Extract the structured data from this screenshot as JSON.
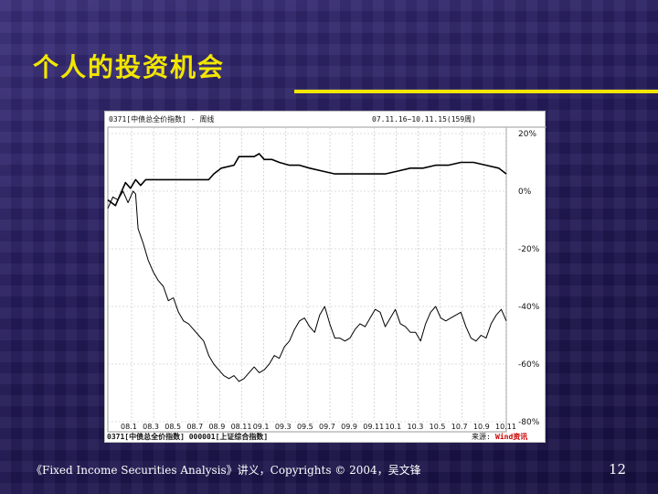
{
  "slide": {
    "title": "个人的投资机会",
    "footer": "《Fixed Income Securities Analysis》讲义，Copyrights © 2004，吴文锋",
    "page_number": "12"
  },
  "colors": {
    "title": "#f2e600",
    "background": "#201a4e",
    "pos_label": "#cc0000"
  },
  "chart_data": {
    "type": "line",
    "header_left": "0371[中债总全价指数] - 周线",
    "header_right": "07.11.16~10.11.15(159周)",
    "legend": "0371[中债总全价指数] 000001[上证综合指数]",
    "source_label": "来源:",
    "source_brand": "Wind资讯",
    "y_ticks": [
      "20%",
      "0%",
      "-20%",
      "-40%",
      "-60%",
      "-80%"
    ],
    "y_tick_values": [
      20,
      0,
      -20,
      -40,
      -60,
      -80
    ],
    "ylim": [
      -80,
      20
    ],
    "xlim": [
      0,
      158
    ],
    "x_ticks": [
      "08.1",
      "08.3",
      "08.5",
      "08.7",
      "08.9",
      "08.11",
      "09.1",
      "09.3",
      "09.5",
      "09.7",
      "09.9",
      "09.11",
      "10.1",
      "10.3",
      "10.5",
      "10.7",
      "10.9",
      "10.11"
    ],
    "grid": true,
    "series": [
      {
        "name": "0371[中债总全价指数]",
        "x": [
          0,
          3,
          5,
          7,
          9,
          11,
          13,
          15,
          19,
          25,
          30,
          35,
          40,
          42,
          45,
          50,
          52,
          55,
          58,
          60,
          62,
          65,
          68,
          72,
          76,
          80,
          85,
          90,
          95,
          100,
          105,
          110,
          115,
          120,
          125,
          130,
          135,
          140,
          145,
          150,
          155,
          158
        ],
        "y": [
          -3,
          -5,
          -1,
          3,
          1,
          4,
          2,
          4,
          4,
          4,
          4,
          4,
          4,
          6,
          8,
          9,
          12,
          12,
          12,
          13,
          11,
          11,
          10,
          9,
          9,
          8,
          7,
          6,
          6,
          6,
          6,
          6,
          7,
          8,
          8,
          9,
          9,
          10,
          10,
          9,
          8,
          6
        ]
      },
      {
        "name": "000001[上证综合指数]",
        "x": [
          0,
          2,
          4,
          6,
          8,
          10,
          11,
          12,
          14,
          16,
          18,
          20,
          22,
          24,
          26,
          28,
          30,
          32,
          34,
          36,
          38,
          40,
          42,
          44,
          46,
          48,
          50,
          52,
          54,
          56,
          58,
          60,
          62,
          64,
          66,
          68,
          70,
          72,
          74,
          76,
          78,
          80,
          82,
          84,
          86,
          88,
          90,
          92,
          94,
          96,
          98,
          100,
          102,
          104,
          106,
          108,
          110,
          112,
          114,
          116,
          118,
          120,
          122,
          124,
          126,
          128,
          130,
          132,
          134,
          136,
          138,
          140,
          142,
          144,
          146,
          148,
          150,
          152,
          154,
          156,
          158
        ],
        "y": [
          -6,
          -2,
          -3,
          0,
          -4,
          0,
          -1,
          -13,
          -18,
          -24,
          -28,
          -31,
          -33,
          -38,
          -37,
          -42,
          -45,
          -46,
          -48,
          -50,
          -52,
          -57,
          -60,
          -62,
          -64,
          -65,
          -64,
          -66,
          -65,
          -63,
          -61,
          -63,
          -62,
          -60,
          -57,
          -58,
          -54,
          -52,
          -48,
          -45,
          -44,
          -47,
          -49,
          -43,
          -40,
          -46,
          -51,
          -51,
          -52,
          -51,
          -48,
          -46,
          -47,
          -44,
          -41,
          -42,
          -47,
          -44,
          -41,
          -46,
          -47,
          -49,
          -49,
          -52,
          -46,
          -42,
          -40,
          -44,
          -45,
          -44,
          -43,
          -42,
          -47,
          -51,
          -52,
          -50,
          -51,
          -46,
          -43,
          -41,
          -45
        ]
      }
    ]
  }
}
